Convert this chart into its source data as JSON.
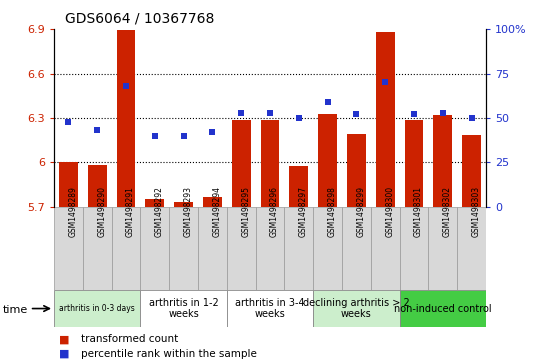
{
  "title": "GDS6064 / 10367768",
  "samples": [
    "GSM1498289",
    "GSM1498290",
    "GSM1498291",
    "GSM1498292",
    "GSM1498293",
    "GSM1498294",
    "GSM1498295",
    "GSM1498296",
    "GSM1498297",
    "GSM1498298",
    "GSM1498299",
    "GSM1498300",
    "GSM1498301",
    "GSM1498302",
    "GSM1498303"
  ],
  "red_values": [
    6.005,
    5.98,
    6.895,
    5.755,
    5.73,
    5.765,
    6.285,
    6.285,
    5.975,
    6.325,
    6.195,
    6.88,
    6.285,
    6.32,
    6.185
  ],
  "blue_values": [
    48,
    43,
    68,
    40,
    40,
    42,
    53,
    53,
    50,
    59,
    52,
    70,
    52,
    53,
    50
  ],
  "ylim_left": [
    5.7,
    6.9
  ],
  "ylim_right": [
    0,
    100
  ],
  "yticks_left": [
    5.7,
    6.0,
    6.3,
    6.6,
    6.9
  ],
  "ytick_labels_left": [
    "5.7",
    "6",
    "6.3",
    "6.6",
    "6.9"
  ],
  "yticks_right": [
    0,
    25,
    50,
    75,
    100
  ],
  "ytick_labels_right": [
    "0",
    "25",
    "50",
    "75",
    "100%"
  ],
  "bar_color": "#CC2200",
  "dot_color": "#2233CC",
  "groups": [
    {
      "label": "arthritis in 0-3 days",
      "start": 0,
      "end": 3,
      "color": "#CCEECC"
    },
    {
      "label": "arthritis in 1-2\nweeks",
      "start": 3,
      "end": 6,
      "color": "#FFFFFF"
    },
    {
      "label": "arthritis in 3-4\nweeks",
      "start": 6,
      "end": 9,
      "color": "#FFFFFF"
    },
    {
      "label": "declining arthritis > 2\nweeks",
      "start": 9,
      "end": 12,
      "color": "#CCEECC"
    },
    {
      "label": "non-induced control",
      "start": 12,
      "end": 15,
      "color": "#44CC44"
    }
  ],
  "legend_red": "transformed count",
  "legend_blue": "percentile rank within the sample",
  "time_label": "time"
}
